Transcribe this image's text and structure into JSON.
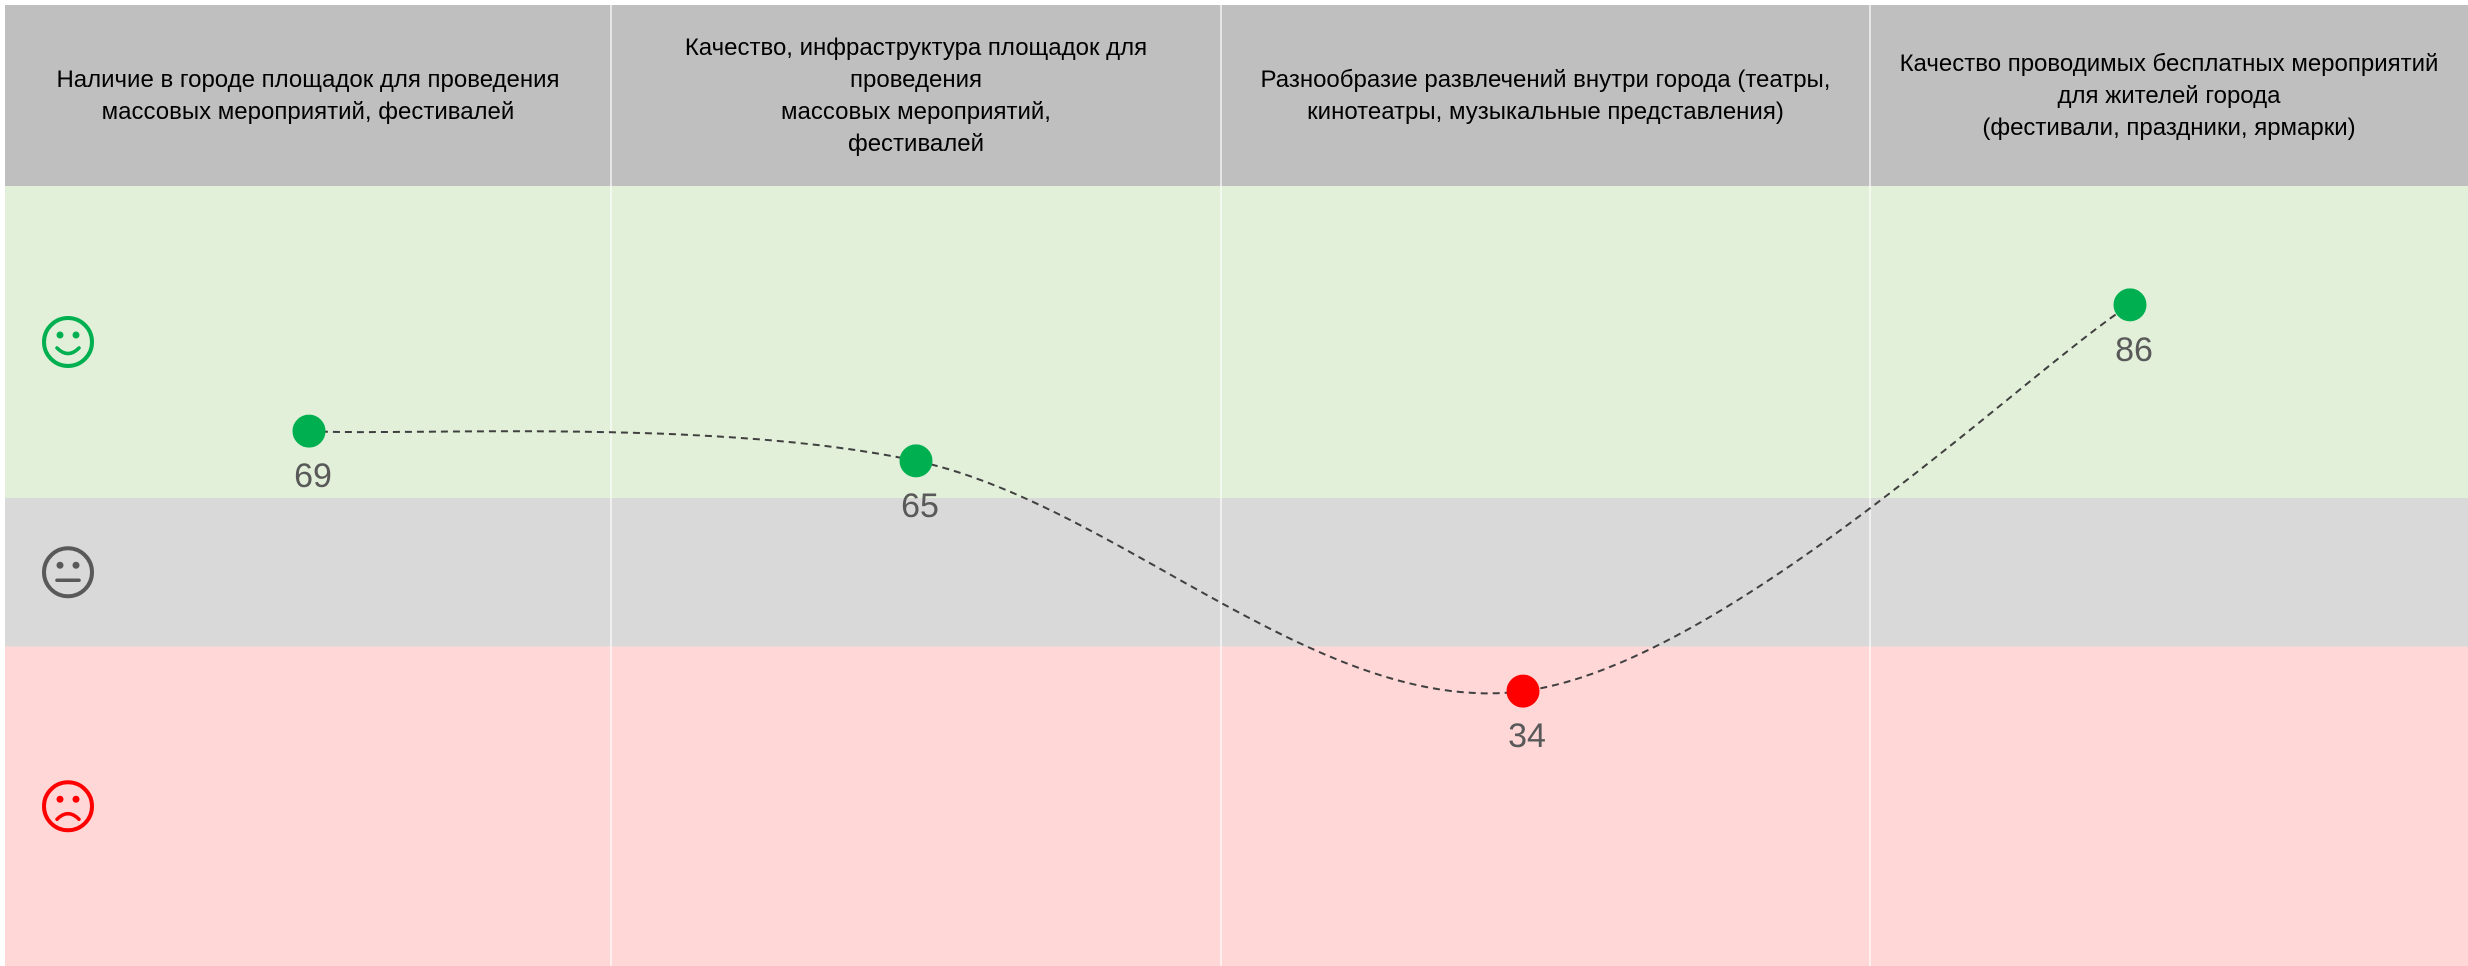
{
  "chart_data": {
    "type": "line",
    "categories": [
      "Наличие в городе площадок для проведения\nмассовых мероприятий, фестивалей",
      "Качество, инфраструктура площадок для проведения\nмассовых мероприятий,\nфестивалей",
      "Разнообразие развлечений внутри города (театры,\nкинотеатры, музыкальные представления)",
      "Качество проводимых бесплатных мероприятий\nдля жителей города\n(фестивали, праздники, ярмарки)"
    ],
    "values": [
      69,
      65,
      34,
      86
    ],
    "point_colors": [
      "#00b050",
      "#00b050",
      "#ff0000",
      "#00b050"
    ],
    "line_color": "#404040",
    "line_style": "dashed",
    "ylim": [
      -3,
      102
    ],
    "thresholds": [
      40,
      60
    ],
    "band_colors": [
      "#ffd7d7",
      "#d9d9d9",
      "#e2f0d9"
    ],
    "icon_colors": [
      "#ff0000",
      "#595959",
      "#00b050"
    ]
  }
}
